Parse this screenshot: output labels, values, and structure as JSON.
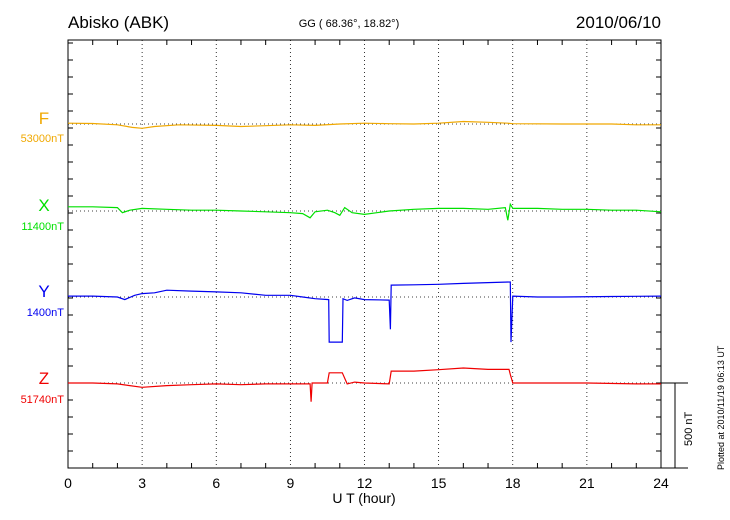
{
  "chart_data": {
    "type": "line",
    "title": "Abisko (ABK)",
    "subtitle": "GG ( 68.36°,  18.82°)",
    "date": "2010/06/10",
    "xlabel": "U T (hour)",
    "xlim": [
      0,
      24
    ],
    "xticks": [
      "0",
      "3",
      "6",
      "9",
      "12",
      "15",
      "18",
      "21",
      "24"
    ],
    "scale_label": "500 nT",
    "scale_nT": 500,
    "footer": "Plotted at 2010/11/19 06:13 UT",
    "grid": true,
    "series": [
      {
        "name": "F",
        "baseline_label": "53000nT",
        "color": "#f0a800",
        "points": [
          [
            0,
            5
          ],
          [
            1,
            3
          ],
          [
            2,
            -5
          ],
          [
            2.6,
            -20
          ],
          [
            3,
            -25
          ],
          [
            3.5,
            -15
          ],
          [
            4.5,
            -5
          ],
          [
            6,
            -8
          ],
          [
            7,
            -15
          ],
          [
            8,
            -10
          ],
          [
            9,
            -5
          ],
          [
            10,
            -8
          ],
          [
            11,
            0
          ],
          [
            12,
            5
          ],
          [
            13,
            2
          ],
          [
            14,
            0
          ],
          [
            15,
            5
          ],
          [
            16,
            15
          ],
          [
            17,
            10
          ],
          [
            17.8,
            5
          ],
          [
            18,
            2
          ],
          [
            20,
            0
          ],
          [
            22,
            0
          ],
          [
            23,
            -5
          ],
          [
            24,
            -5
          ]
        ]
      },
      {
        "name": "X",
        "baseline_label": "11400nT",
        "color": "#00e000",
        "points": [
          [
            0,
            25
          ],
          [
            1,
            25
          ],
          [
            2,
            20
          ],
          [
            2.2,
            -10
          ],
          [
            2.5,
            5
          ],
          [
            3,
            15
          ],
          [
            4,
            10
          ],
          [
            5,
            5
          ],
          [
            6,
            5
          ],
          [
            7,
            0
          ],
          [
            8,
            -5
          ],
          [
            9,
            -10
          ],
          [
            9.5,
            -15
          ],
          [
            9.8,
            -40
          ],
          [
            10,
            -5
          ],
          [
            10.5,
            5
          ],
          [
            10.8,
            -10
          ],
          [
            11,
            -25
          ],
          [
            11.2,
            20
          ],
          [
            11.5,
            -10
          ],
          [
            12,
            -20
          ],
          [
            12.5,
            -10
          ],
          [
            13,
            0
          ],
          [
            14,
            10
          ],
          [
            15,
            15
          ],
          [
            16,
            15
          ],
          [
            17,
            10
          ],
          [
            17.7,
            20
          ],
          [
            17.8,
            -55
          ],
          [
            17.9,
            40
          ],
          [
            18,
            15
          ],
          [
            19,
            15
          ],
          [
            20,
            10
          ],
          [
            21,
            10
          ],
          [
            22,
            5
          ],
          [
            23,
            5
          ],
          [
            24,
            -5
          ]
        ]
      },
      {
        "name": "Y",
        "baseline_label": "1400nT",
        "color": "#0000f0",
        "points": [
          [
            0,
            5
          ],
          [
            1,
            5
          ],
          [
            2,
            0
          ],
          [
            2.3,
            -15
          ],
          [
            2.7,
            10
          ],
          [
            3,
            20
          ],
          [
            3.5,
            25
          ],
          [
            4,
            40
          ],
          [
            5,
            35
          ],
          [
            6,
            30
          ],
          [
            7,
            25
          ],
          [
            8,
            10
          ],
          [
            9,
            10
          ],
          [
            9.5,
            0
          ],
          [
            10,
            -10
          ],
          [
            10.55,
            -15
          ],
          [
            10.57,
            -265
          ],
          [
            11.1,
            -265
          ],
          [
            11.13,
            -10
          ],
          [
            11.3,
            -20
          ],
          [
            11.6,
            -5
          ],
          [
            12,
            -15
          ],
          [
            13,
            -18
          ],
          [
            13.05,
            -190
          ],
          [
            13.08,
            70
          ],
          [
            14,
            72
          ],
          [
            15,
            75
          ],
          [
            16,
            80
          ],
          [
            17,
            85
          ],
          [
            17.9,
            88
          ],
          [
            17.93,
            -265
          ],
          [
            18,
            5
          ],
          [
            19,
            0
          ],
          [
            20,
            0
          ],
          [
            22,
            3
          ],
          [
            24,
            5
          ]
        ]
      },
      {
        "name": "Z",
        "baseline_label": "51740nT",
        "color": "#f00000",
        "points": [
          [
            0,
            0
          ],
          [
            1,
            0
          ],
          [
            2,
            -5
          ],
          [
            3,
            -25
          ],
          [
            4,
            -15
          ],
          [
            5,
            -10
          ],
          [
            6,
            -5
          ],
          [
            7,
            -10
          ],
          [
            8,
            -5
          ],
          [
            9,
            -5
          ],
          [
            9.8,
            -5
          ],
          [
            9.84,
            -110
          ],
          [
            9.88,
            0
          ],
          [
            10.5,
            0
          ],
          [
            10.57,
            60
          ],
          [
            11.1,
            60
          ],
          [
            11.3,
            -5
          ],
          [
            11.6,
            5
          ],
          [
            12,
            0
          ],
          [
            13,
            -5
          ],
          [
            13.08,
            70
          ],
          [
            14,
            70
          ],
          [
            15,
            78
          ],
          [
            16,
            88
          ],
          [
            17,
            80
          ],
          [
            17.85,
            80
          ],
          [
            17.9,
            50
          ],
          [
            18,
            0
          ],
          [
            19,
            0
          ],
          [
            21,
            0
          ],
          [
            23,
            -5
          ],
          [
            24,
            -5
          ]
        ]
      }
    ]
  }
}
